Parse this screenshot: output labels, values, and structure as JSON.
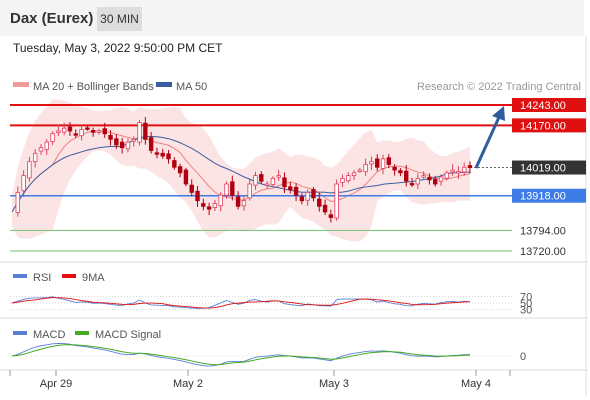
{
  "header": {
    "title": "Dax (Eurex)",
    "timeframe": "30 MIN"
  },
  "datetime": "Tuesday, May 3, 2022 9:50:00 PM CET",
  "legend": {
    "ma20": "MA 20 + Bollinger Bands",
    "ma50": "MA 50",
    "rsi": "RSI",
    "rsi_ma": "9MA",
    "macd": "MACD",
    "macd_signal": "MACD Signal"
  },
  "copyright": "Research © 2022 Trading Central",
  "colors": {
    "resistance": "#e01010",
    "support": "#3d7be5",
    "pivot_weak": "#6fc26f",
    "current": "#333333",
    "candle_up": "#e04060",
    "candle_down": "#b00010",
    "bollinger_fill": "#fde4e4",
    "ma20": "#f08080",
    "ma50": "#3a5fa0",
    "rsi": "#5b7fd6",
    "rsi_ma": "#e01010",
    "macd": "#5b7fd6",
    "macd_signal": "#44aa22",
    "arrow": "#2d5f9e"
  },
  "chart_data": {
    "type": "candlestick",
    "instrument": "Dax (Eurex)",
    "timeframe": "30 MIN",
    "y_range": [
      13700,
      14250
    ],
    "x_labels": [
      "Apr 29",
      "May 2",
      "May 3",
      "May 4"
    ],
    "levels": [
      {
        "value": 14243.0,
        "label": "14243.00",
        "kind": "resistance"
      },
      {
        "value": 14170.0,
        "label": "14170.00",
        "kind": "resistance"
      },
      {
        "value": 14019.0,
        "label": "14019.00",
        "kind": "current"
      },
      {
        "value": 13918.0,
        "label": "13918.00",
        "kind": "support"
      },
      {
        "value": 13794.0,
        "label": "13794.00",
        "kind": "pivot"
      },
      {
        "value": 13720.0,
        "label": "13720.00",
        "kind": "pivot"
      }
    ],
    "close_path": [
      13860,
      13930,
      13990,
      14040,
      14070,
      14090,
      14110,
      14140,
      14150,
      14160,
      14150,
      14135,
      14155,
      14160,
      14145,
      14150,
      14140,
      14120,
      14100,
      14090,
      14110,
      14120,
      14180,
      14120,
      14080,
      14070,
      14060,
      14050,
      14020,
      14000,
      13960,
      13930,
      13900,
      13880,
      13870,
      13890,
      13920,
      13960,
      13920,
      13880,
      13900,
      13960,
      13990,
      13970,
      13960,
      13980,
      13990,
      13950,
      13940,
      13920,
      13900,
      13930,
      13910,
      13880,
      13860,
      13840,
      13960,
      13980,
      13990,
      14000,
      14010,
      14030,
      14040,
      14020,
      14050,
      14030,
      14010,
      14000,
      13970,
      13960,
      13980,
      13990,
      13975,
      13960,
      13985,
      14000,
      14010,
      14005,
      14020,
      14019
    ],
    "rsi_axis": [
      70,
      50,
      30
    ],
    "macd_axis": [
      0
    ]
  }
}
